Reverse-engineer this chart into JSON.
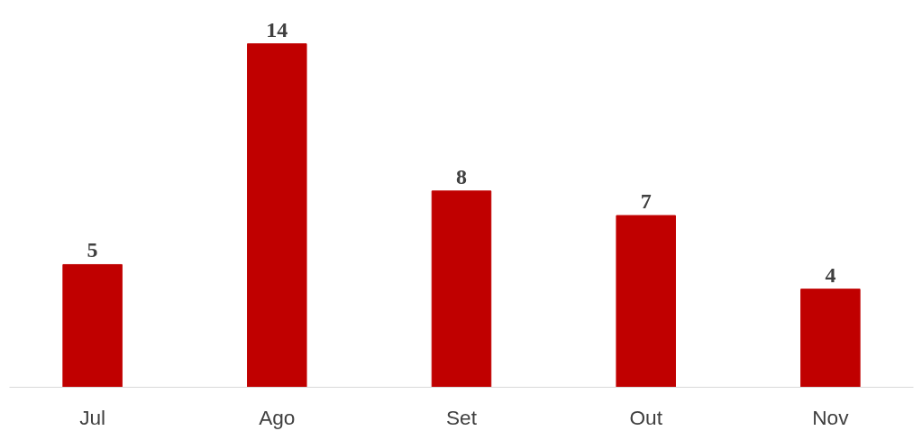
{
  "chart_data": {
    "type": "bar",
    "categories": [
      "Jul",
      "Ago",
      "Set",
      "Out",
      "Nov"
    ],
    "values": [
      5,
      14,
      8,
      7,
      4
    ],
    "color": "#c00000",
    "data_labels": true
  }
}
